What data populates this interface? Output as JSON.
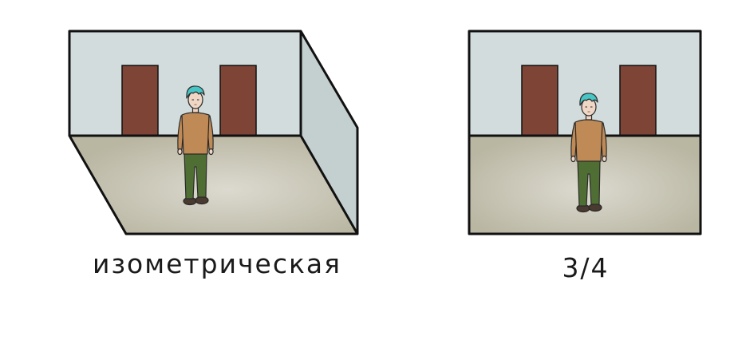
{
  "panels": [
    {
      "id": "isometric",
      "caption": "изометрическая"
    },
    {
      "id": "three-quarter",
      "caption": "3/4"
    }
  ],
  "colors": {
    "wall": "#d2dcdc",
    "side_wall": "#c4cfcf",
    "floor_center": "#dcdad0",
    "floor_edge": "#b9b6a2",
    "door": "#7e4436",
    "sweater": "#bf8a56",
    "pants": "#4f6e33",
    "hair": "#47c4c4",
    "skin": "#f0d6c4",
    "shoes": "#4a3a30",
    "outline": "#111111"
  }
}
